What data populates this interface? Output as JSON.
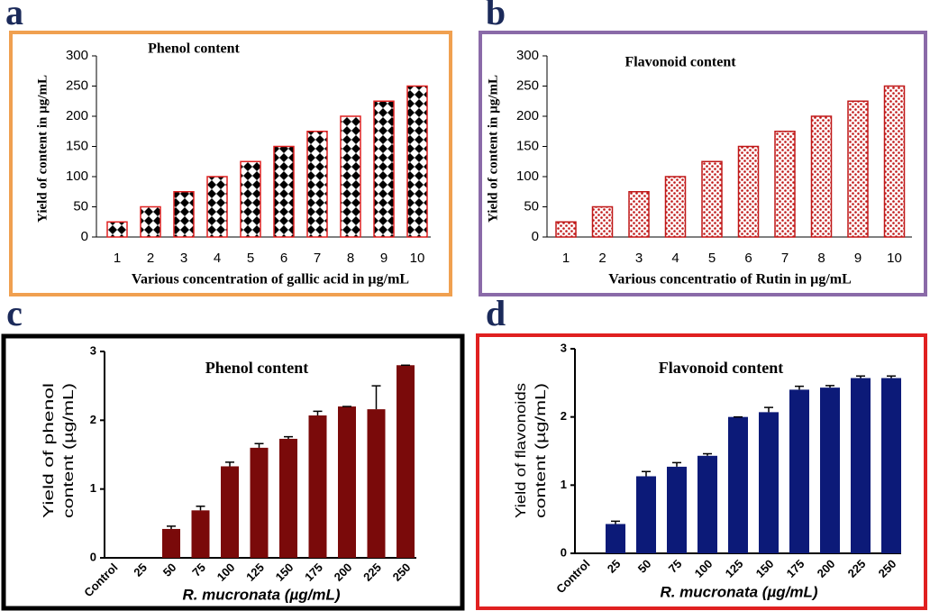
{
  "chart_data": [
    {
      "type": "bar",
      "panel": "a",
      "title": "Phenol content",
      "pattern": "checker",
      "color": "#e02020",
      "border_color": "#f0a050",
      "x_label": "Various concentration of gallic acid in µg/mL",
      "y_label": "Yield of content in µg/mL",
      "categories": [
        "1",
        "2",
        "3",
        "4",
        "5",
        "6",
        "7",
        "8",
        "9",
        "10"
      ],
      "values": [
        25,
        50,
        75,
        100,
        125,
        150,
        175,
        200,
        225,
        250
      ],
      "ylim": [
        0,
        300
      ],
      "yticks": [
        0,
        50,
        100,
        150,
        200,
        250,
        300
      ]
    },
    {
      "type": "bar",
      "panel": "b",
      "title": "Flavonoid content",
      "pattern": "dots",
      "color": "#c01818",
      "border_color": "#8a6aa8",
      "x_label": "Various concentratio of Rutin in µg/mL",
      "y_label": "Yield of content in µg/mL",
      "categories": [
        "1",
        "2",
        "3",
        "4",
        "5",
        "6",
        "7",
        "8",
        "9",
        "10"
      ],
      "values": [
        25,
        50,
        75,
        100,
        125,
        150,
        175,
        200,
        225,
        250
      ],
      "ylim": [
        0,
        300
      ],
      "yticks": [
        0,
        50,
        100,
        150,
        200,
        250,
        300
      ]
    },
    {
      "type": "bar",
      "panel": "c",
      "title": "Phenol content",
      "pattern": "solid",
      "color": "#7a0a0a",
      "border_color": "#000000",
      "x_label": "R. mucronata (µg/mL)",
      "y_label": [
        "Yield of phenol",
        "content (µg/mL)"
      ],
      "categories": [
        "Control",
        "25",
        "50",
        "75",
        "100",
        "125",
        "150",
        "175",
        "200",
        "225",
        "250"
      ],
      "values": [
        0,
        0,
        0.42,
        0.69,
        1.33,
        1.6,
        1.73,
        2.07,
        2.2,
        2.16,
        2.8
      ],
      "errors": [
        0,
        0,
        0.04,
        0.06,
        0.06,
        0.06,
        0.03,
        0.06,
        0,
        0.34,
        0
      ],
      "ylim": [
        0,
        3
      ],
      "yticks": [
        0,
        1,
        2,
        3
      ]
    },
    {
      "type": "bar",
      "panel": "d",
      "title": "Flavonoid content",
      "pattern": "solid",
      "color": "#0c1a78",
      "border_color": "#e02020",
      "x_label": "R. mucronata (µg/mL)",
      "y_label": [
        "Yield of flavonoids",
        "content (µg/mL)"
      ],
      "categories": [
        "Control",
        "25",
        "50",
        "75",
        "100",
        "125",
        "150",
        "175",
        "200",
        "225",
        "250"
      ],
      "values": [
        0,
        0.43,
        1.13,
        1.27,
        1.43,
        2.0,
        2.07,
        2.4,
        2.43,
        2.57,
        2.57
      ],
      "errors": [
        0,
        0.04,
        0.07,
        0.06,
        0.03,
        0,
        0.07,
        0.05,
        0.03,
        0.03,
        0.03
      ],
      "ylim": [
        0,
        3
      ],
      "yticks": [
        0,
        1,
        2,
        3
      ]
    }
  ]
}
